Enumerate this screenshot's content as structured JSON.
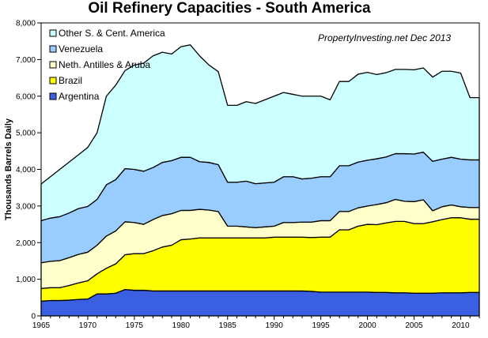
{
  "chart_data": {
    "type": "area",
    "stacked": true,
    "title": "Oil Refinery Capacities - South America",
    "annotation": "PropertyInvesting.net Dec 2013",
    "ylabel": "Thousands Barrels Daily",
    "xlabel": "",
    "xlim": [
      1965,
      2012
    ],
    "ylim": [
      0,
      8000
    ],
    "x_ticks": [
      1965,
      1970,
      1975,
      1980,
      1985,
      1990,
      1995,
      2000,
      2005,
      2010
    ],
    "y_ticks": [
      0,
      1000,
      2000,
      3000,
      4000,
      5000,
      6000,
      7000,
      8000
    ],
    "y_tick_labels": [
      "0",
      "1,000",
      "2,000",
      "3,000",
      "4,000",
      "5,000",
      "6,000",
      "7,000",
      "8,000"
    ],
    "grid": false,
    "legend_position": "top-left",
    "x": [
      1965,
      1966,
      1967,
      1968,
      1969,
      1970,
      1971,
      1972,
      1973,
      1974,
      1975,
      1976,
      1977,
      1978,
      1979,
      1980,
      1981,
      1982,
      1983,
      1984,
      1985,
      1986,
      1987,
      1988,
      1989,
      1990,
      1991,
      1992,
      1993,
      1994,
      1995,
      1996,
      1997,
      1998,
      1999,
      2000,
      2001,
      2002,
      2003,
      2004,
      2005,
      2006,
      2007,
      2008,
      2009,
      2010,
      2011,
      2012
    ],
    "series": [
      {
        "name": "Argentina",
        "color": "#3a5fe0",
        "values": [
          400,
          420,
          420,
          430,
          450,
          460,
          600,
          600,
          620,
          720,
          700,
          700,
          680,
          680,
          680,
          680,
          680,
          680,
          680,
          680,
          680,
          680,
          680,
          680,
          680,
          680,
          680,
          680,
          680,
          670,
          650,
          650,
          650,
          650,
          650,
          650,
          640,
          640,
          630,
          630,
          620,
          620,
          620,
          630,
          630,
          630,
          640,
          640
        ]
      },
      {
        "name": "Brazil",
        "color": "#ffff00",
        "values": [
          350,
          350,
          350,
          400,
          450,
          500,
          550,
          700,
          800,
          950,
          1000,
          1000,
          1100,
          1200,
          1250,
          1400,
          1420,
          1450,
          1450,
          1450,
          1450,
          1450,
          1450,
          1450,
          1450,
          1470,
          1470,
          1470,
          1470,
          1470,
          1500,
          1500,
          1700,
          1700,
          1800,
          1850,
          1850,
          1900,
          1950,
          1950,
          1900,
          1900,
          1950,
          2000,
          2050,
          2050,
          2000,
          2000
        ]
      },
      {
        "name": "Neth. Antilles & Aruba",
        "color": "#ffffcc",
        "values": [
          700,
          720,
          740,
          760,
          780,
          780,
          780,
          880,
          900,
          900,
          850,
          800,
          850,
          860,
          860,
          800,
          780,
          780,
          760,
          720,
          320,
          320,
          300,
          280,
          300,
          300,
          400,
          400,
          410,
          420,
          450,
          450,
          500,
          500,
          500,
          500,
          550,
          550,
          600,
          550,
          600,
          650,
          300,
          350,
          350,
          300,
          320,
          320
        ]
      },
      {
        "name": "Venezuela",
        "color": "#99ccff",
        "values": [
          1150,
          1180,
          1200,
          1220,
          1250,
          1250,
          1250,
          1400,
          1400,
          1450,
          1450,
          1450,
          1420,
          1450,
          1450,
          1450,
          1450,
          1300,
          1300,
          1280,
          1200,
          1200,
          1250,
          1200,
          1200,
          1200,
          1250,
          1250,
          1180,
          1200,
          1200,
          1200,
          1250,
          1250,
          1250,
          1250,
          1250,
          1250,
          1250,
          1300,
          1300,
          1300,
          1350,
          1300,
          1300,
          1300,
          1300,
          1300
        ]
      },
      {
        "name": "Other S. & Cent. America",
        "color": "#ccffff",
        "values": [
          1000,
          1130,
          1290,
          1390,
          1470,
          1610,
          1820,
          2420,
          2580,
          2680,
          2850,
          2950,
          3050,
          3010,
          2910,
          3020,
          3070,
          2890,
          2660,
          2540,
          2100,
          2100,
          2170,
          2190,
          2270,
          2350,
          2300,
          2250,
          2260,
          2240,
          2200,
          2100,
          2300,
          2300,
          2400,
          2400,
          2300,
          2300,
          2300,
          2300,
          2300,
          2300,
          2300,
          2400,
          2350,
          2350,
          1700,
          1700
        ]
      }
    ]
  }
}
